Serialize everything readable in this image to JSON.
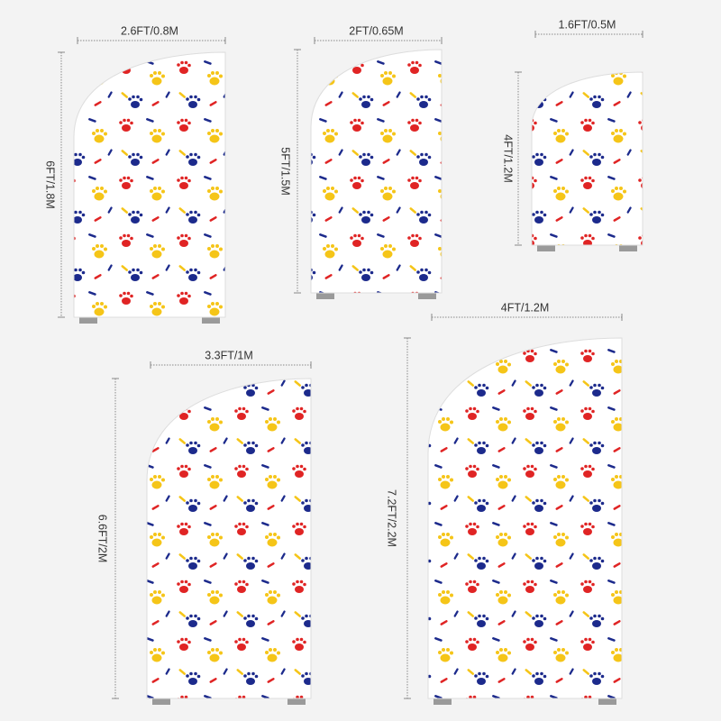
{
  "panels": [
    {
      "width_label": "2.6FT/0.8M",
      "height_label": "6FT/1.8M"
    },
    {
      "width_label": "2FT/0.65M",
      "height_label": "5FT/1.5M"
    },
    {
      "width_label": "1.6FT/0.5M",
      "height_label": "4FT/1.2M"
    },
    {
      "width_label": "3.3FT/1M",
      "height_label": "6.6FT/2M"
    },
    {
      "width_label": "4FT/1.2M",
      "height_label": "7.2FT/2.2M"
    }
  ]
}
